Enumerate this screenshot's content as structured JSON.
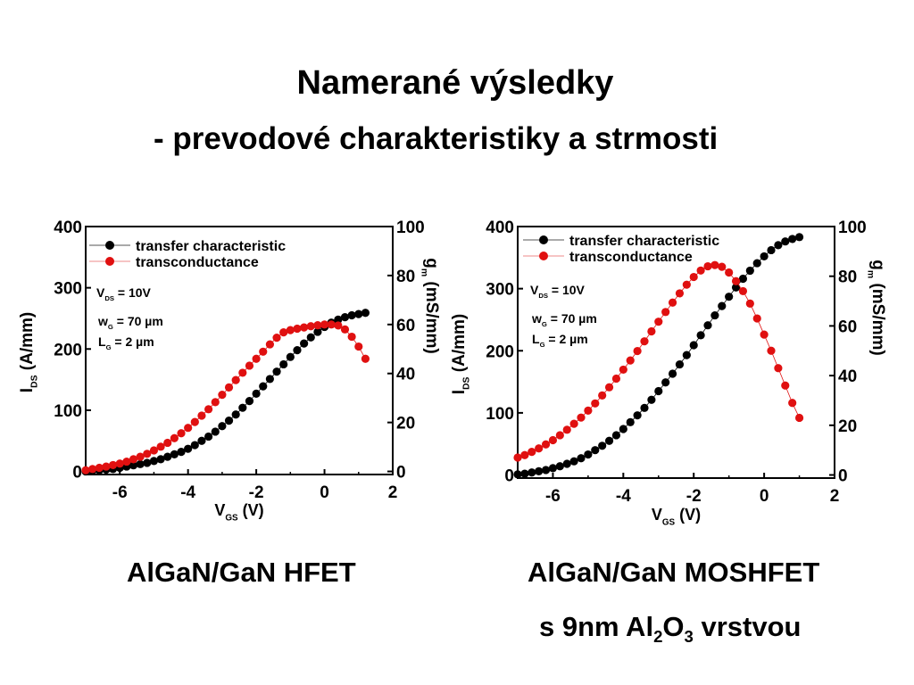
{
  "slide": {
    "title": "Namerané výsledky",
    "subtitle": "- prevodové charakteristiky a strmosti",
    "caption_left": "AlGaN/GaN HFET",
    "caption_right_line1": "AlGaN/GaN MOSHFET",
    "caption_right_s": "s 9nm Al",
    "caption_right_sub2": "2",
    "caption_right_O": "O",
    "caption_right_sub3": "3",
    "caption_right_rest": " vrstvou"
  },
  "colors": {
    "transfer": "#000000",
    "transconductance": "#e01010"
  },
  "chart_data": [
    {
      "type": "scatter",
      "xlabel_main": "V",
      "xlabel_sub": "GS",
      "xlabel_unit": " (V)",
      "ylabel_main": "I",
      "ylabel_sub": "DS",
      "ylabel_unit": " (A/mm)",
      "y2label_main": "g",
      "y2label_sub": "m",
      "y2label_unit": " (mS/mm)",
      "xlim": [
        -7,
        2
      ],
      "ylim": [
        -5,
        400
      ],
      "y2lim": [
        -1.25,
        100
      ],
      "x_ticks": [
        "-6",
        "-4",
        "-2",
        "0",
        "2"
      ],
      "y_ticks": [
        "0",
        "100",
        "200",
        "300",
        "400"
      ],
      "y2_ticks": [
        "0",
        "20",
        "40",
        "60",
        "80",
        "100"
      ],
      "legend": [
        "transfer characteristic",
        "transconductance"
      ],
      "annotations": {
        "vds": "V",
        "vds_sub": "DS",
        "vds_val": " = 10V",
        "wg": "w",
        "wg_sub": "G",
        "wg_val": " = 70 µm",
        "lg": "L",
        "lg_sub": "G",
        "lg_val": " =   2 µm"
      },
      "series": [
        {
          "name": "transfer characteristic",
          "axis": "left",
          "x": [
            -7.0,
            -6.8,
            -6.6,
            -6.4,
            -6.2,
            -6.0,
            -5.8,
            -5.6,
            -5.4,
            -5.2,
            -5.0,
            -4.8,
            -4.6,
            -4.4,
            -4.2,
            -4.0,
            -3.8,
            -3.6,
            -3.4,
            -3.2,
            -3.0,
            -2.8,
            -2.6,
            -2.4,
            -2.2,
            -2.0,
            -1.8,
            -1.6,
            -1.4,
            -1.2,
            -1.0,
            -0.8,
            -0.6,
            -0.4,
            -0.2,
            0.0,
            0.2,
            0.4,
            0.6,
            0.8,
            1.0,
            1.2
          ],
          "y": [
            0,
            1,
            2,
            3,
            4,
            6,
            8,
            10,
            12,
            14,
            17,
            20,
            24,
            28,
            32,
            37,
            43,
            50,
            57,
            65,
            74,
            83,
            93,
            104,
            115,
            127,
            139,
            151,
            163,
            175,
            187,
            198,
            209,
            219,
            228,
            236,
            243,
            248,
            252,
            255,
            257,
            259
          ]
        },
        {
          "name": "transconductance",
          "axis": "right",
          "x": [
            -7.0,
            -6.8,
            -6.6,
            -6.4,
            -6.2,
            -6.0,
            -5.8,
            -5.6,
            -5.4,
            -5.2,
            -5.0,
            -4.8,
            -4.6,
            -4.4,
            -4.2,
            -4.0,
            -3.8,
            -3.6,
            -3.4,
            -3.2,
            -3.0,
            -2.8,
            -2.6,
            -2.4,
            -2.2,
            -2.0,
            -1.8,
            -1.6,
            -1.4,
            -1.2,
            -1.0,
            -0.8,
            -0.6,
            -0.4,
            -0.2,
            0.0,
            0.2,
            0.4,
            0.6,
            0.8,
            1.0,
            1.2
          ],
          "y": [
            0.5,
            1,
            1.5,
            2,
            2.6,
            3.2,
            4,
            5,
            6,
            7.2,
            8.6,
            10.1,
            11.7,
            13.6,
            15.6,
            17.8,
            20.2,
            22.8,
            25.4,
            28.3,
            31.3,
            34.3,
            37.3,
            40.3,
            43.2,
            46,
            48.9,
            51.9,
            54.6,
            56.8,
            57.7,
            58.3,
            58.8,
            59.3,
            59.7,
            60,
            60,
            59.6,
            58,
            55,
            51,
            46
          ]
        }
      ]
    },
    {
      "type": "scatter",
      "xlabel_main": "V",
      "xlabel_sub": "GS",
      "xlabel_unit": " (V)",
      "ylabel_main": "I",
      "ylabel_sub": "DS",
      "ylabel_unit": " (A/mm)",
      "y2label_main": "g",
      "y2label_sub": "m",
      "y2label_unit": " (mS/mm)",
      "xlim": [
        -7,
        2
      ],
      "ylim": [
        -5,
        400
      ],
      "y2lim": [
        -1.25,
        100
      ],
      "x_ticks": [
        "-6",
        "-4",
        "-2",
        "0",
        "2"
      ],
      "y_ticks": [
        "0",
        "100",
        "200",
        "300",
        "400"
      ],
      "y2_ticks": [
        "0",
        "20",
        "40",
        "60",
        "80",
        "100"
      ],
      "legend": [
        "transfer characteristic",
        "transconductance"
      ],
      "annotations": {
        "vds": "V",
        "vds_sub": "DS",
        "vds_val": " = 10V",
        "wg": "w",
        "wg_sub": "G",
        "wg_val": " = 70 µm",
        "lg": "L",
        "lg_sub": "G",
        "lg_val": " =  2 µm"
      },
      "series": [
        {
          "name": "transfer characteristic",
          "axis": "left",
          "x": [
            -7.0,
            -6.8,
            -6.6,
            -6.4,
            -6.2,
            -6.0,
            -5.8,
            -5.6,
            -5.4,
            -5.2,
            -5.0,
            -4.8,
            -4.6,
            -4.4,
            -4.2,
            -4.0,
            -3.8,
            -3.6,
            -3.4,
            -3.2,
            -3.0,
            -2.8,
            -2.6,
            -2.4,
            -2.2,
            -2.0,
            -1.8,
            -1.6,
            -1.4,
            -1.2,
            -1.0,
            -0.8,
            -0.6,
            -0.4,
            -0.2,
            0.0,
            0.2,
            0.4,
            0.6,
            0.8,
            1.0
          ],
          "y": [
            1,
            2,
            4,
            6,
            8,
            11,
            14,
            18,
            22,
            27,
            33,
            40,
            47,
            55,
            64,
            74,
            85,
            96,
            108,
            121,
            135,
            149,
            163,
            178,
            193,
            209,
            225,
            241,
            257,
            272,
            287,
            302,
            316,
            329,
            341,
            352,
            362,
            370,
            376,
            380,
            383
          ]
        },
        {
          "name": "transconductance",
          "axis": "right",
          "x": [
            -7.0,
            -6.8,
            -6.6,
            -6.4,
            -6.2,
            -6.0,
            -5.8,
            -5.6,
            -5.4,
            -5.2,
            -5.0,
            -4.8,
            -4.6,
            -4.4,
            -4.2,
            -4.0,
            -3.8,
            -3.6,
            -3.4,
            -3.2,
            -3.0,
            -2.8,
            -2.6,
            -2.4,
            -2.2,
            -2.0,
            -1.8,
            -1.6,
            -1.4,
            -1.2,
            -1.0,
            -0.8,
            -0.6,
            -0.4,
            -0.2,
            0.0,
            0.2,
            0.4,
            0.6,
            0.8,
            1.0
          ],
          "y": [
            7,
            8,
            9.3,
            10.7,
            12.3,
            14,
            16,
            18.2,
            20.6,
            23.1,
            25.9,
            28.8,
            32,
            35.3,
            38.8,
            42.4,
            46.1,
            49.9,
            53.8,
            57.8,
            61.7,
            65.6,
            69.4,
            73.1,
            76.6,
            79.7,
            82.3,
            84,
            84.5,
            83.8,
            81.5,
            78,
            74,
            69,
            63,
            56.5,
            50,
            43,
            36,
            29,
            23
          ]
        }
      ]
    }
  ]
}
